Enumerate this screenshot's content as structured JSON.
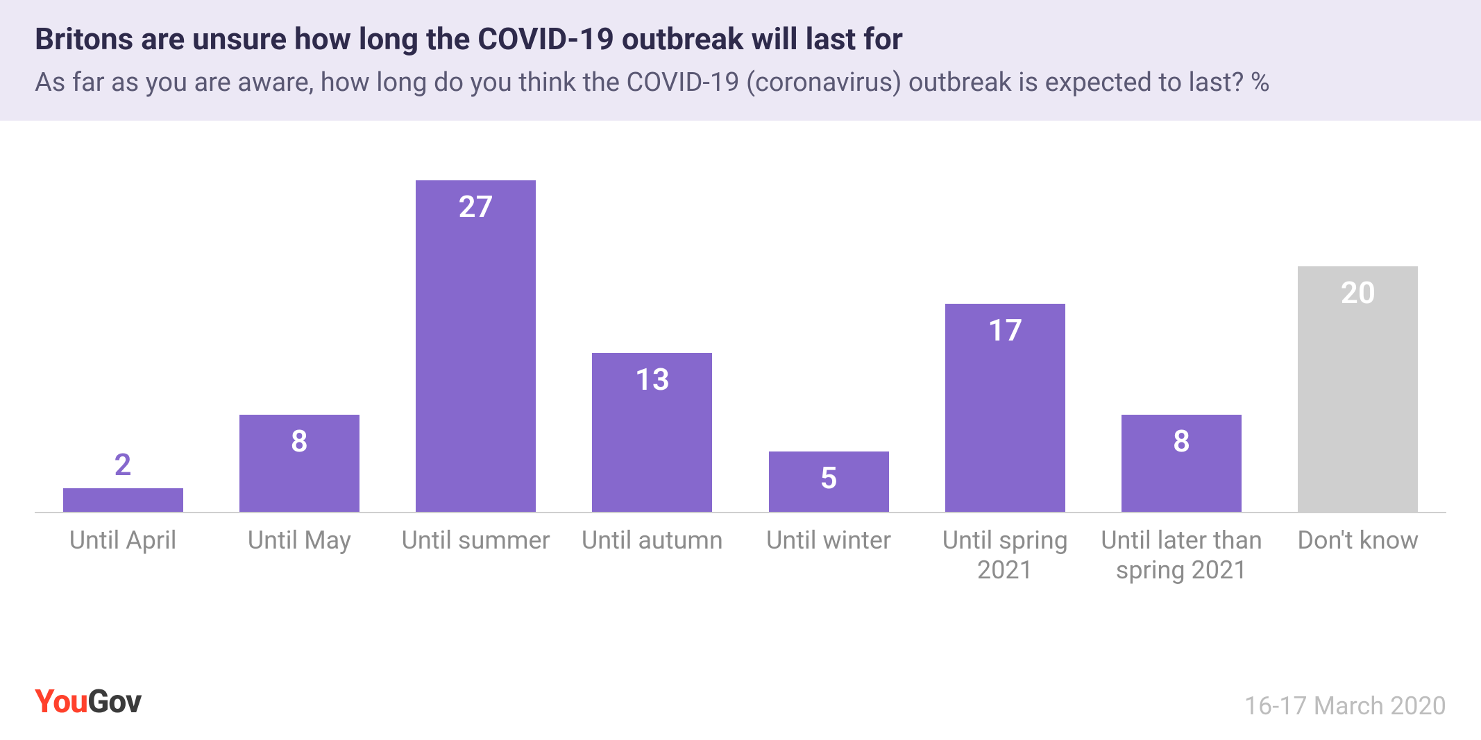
{
  "header": {
    "title": "Britons are unsure how long the COVID-19 outbreak will last for",
    "subtitle": "As far as you are aware, how long do you think the COVID-19 (coronavirus) outbreak is expected to last? %",
    "background_color": "#ece8f5",
    "title_color": "#2e2a4b",
    "title_fontsize": 44,
    "subtitle_color": "#5a5873",
    "subtitle_fontsize": 38
  },
  "chart": {
    "type": "bar",
    "categories": [
      "Until April",
      "Until May",
      "Until summer",
      "Until autumn",
      "Until winter",
      "Until spring 2021",
      "Until later than spring 2021",
      "Don't know"
    ],
    "values": [
      2,
      8,
      27,
      13,
      5,
      17,
      8,
      20
    ],
    "bar_colors": [
      "#8668cd",
      "#8668cd",
      "#8668cd",
      "#8668cd",
      "#8668cd",
      "#8668cd",
      "#8668cd",
      "#cfcfcf"
    ],
    "value_label_outside": [
      true,
      false,
      false,
      false,
      false,
      false,
      false,
      false
    ],
    "value_label_color_inside": "#ffffff",
    "value_label_color_outside": "#8668cd",
    "value_fontsize": 44,
    "category_label_color": "#8c8c8c",
    "category_label_fontsize": 36,
    "axis_line_color": "#cfcfcf",
    "background_color": "#ffffff",
    "ylim_max": 27,
    "bar_width_ratio": 0.68
  },
  "footer": {
    "logo_you": "You",
    "logo_gov": "Gov",
    "logo_you_color": "#ff412c",
    "logo_gov_color": "#3b3b3b",
    "logo_fontsize": 46,
    "date": "16-17 March 2020",
    "date_color": "#bdbdbd",
    "date_fontsize": 36
  }
}
